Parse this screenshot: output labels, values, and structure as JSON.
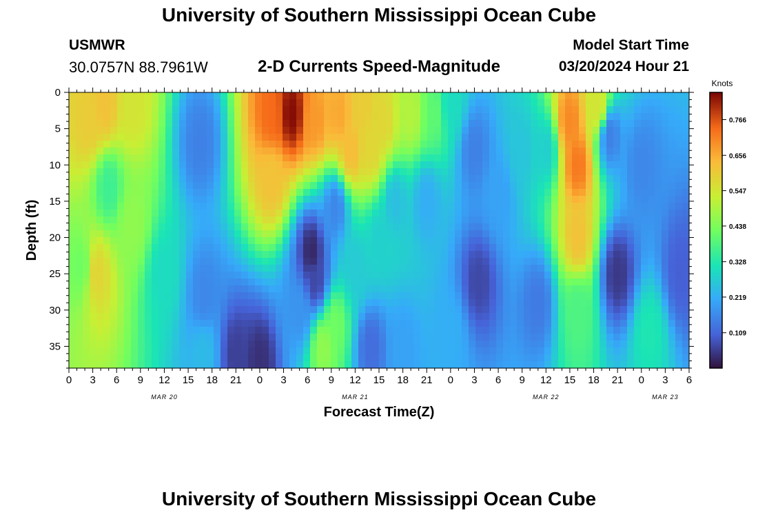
{
  "header": {
    "title": "University of Southern Mississippi Ocean Cube",
    "station": "USMWR",
    "coordinates": "30.0757N  88.7961W",
    "subtitle": "2-D Currents Speed-Magnitude",
    "start_label": "Model Start Time",
    "start_value": "03/20/2024 Hour 21"
  },
  "footer": {
    "title": "University of Southern Mississippi Ocean Cube"
  },
  "chart_data": {
    "type": "heatmap",
    "title": "2-D Currents Speed-Magnitude",
    "xlabel": "Forecast Time(Z)",
    "ylabel": "Depth (ft)",
    "x_ticks": [
      "0",
      "3",
      "6",
      "9",
      "12",
      "15",
      "18",
      "21",
      "0",
      "3",
      "6",
      "9",
      "12",
      "15",
      "18",
      "21",
      "0",
      "3",
      "6",
      "9",
      "12",
      "15",
      "18",
      "21",
      "0",
      "3",
      "6"
    ],
    "x_range_hours": [
      0,
      78
    ],
    "date_labels": [
      {
        "label": "MAR 20",
        "hour": 12
      },
      {
        "label": "MAR 21",
        "hour": 36
      },
      {
        "label": "MAR 22",
        "hour": 60
      },
      {
        "label": "MAR 23",
        "hour": 75
      }
    ],
    "y_ticks": [
      0,
      5,
      10,
      15,
      20,
      25,
      30,
      35
    ],
    "y_range": [
      0,
      38
    ],
    "y_inverted": true,
    "colorbar": {
      "label": "Knots",
      "ticks": [
        "0.109",
        "0.219",
        "0.328",
        "0.438",
        "0.547",
        "0.656",
        "0.766"
      ],
      "range": [
        0.0,
        0.85
      ],
      "colormap": "turbo"
    },
    "features": [
      {
        "t": 2.5,
        "d": 4,
        "value": 0.6
      },
      {
        "t": 4.5,
        "d": 2,
        "value": 0.62
      },
      {
        "t": 8,
        "d": 2,
        "value": 0.55
      },
      {
        "t": 5,
        "d": 13,
        "value": 0.36
      },
      {
        "t": 8,
        "d": 18,
        "value": 0.46
      },
      {
        "t": 3.5,
        "d": 25,
        "value": 0.58
      },
      {
        "t": 1.5,
        "d": 24,
        "value": 0.42
      },
      {
        "t": 12,
        "d": 25,
        "value": 0.3
      },
      {
        "t": 16.5,
        "d": 7,
        "value": 0.15
      },
      {
        "t": 17,
        "d": 28,
        "value": 0.16
      },
      {
        "t": 17,
        "d": 36,
        "value": 0.24
      },
      {
        "t": 21,
        "d": 36,
        "value": 0.06
      },
      {
        "t": 24,
        "d": 37,
        "value": 0.04
      },
      {
        "t": 25.5,
        "d": 3,
        "value": 0.74
      },
      {
        "t": 25.5,
        "d": 12,
        "value": 0.62
      },
      {
        "t": 28,
        "d": 3,
        "value": 0.84
      },
      {
        "t": 31,
        "d": 4,
        "value": 0.68
      },
      {
        "t": 34,
        "d": 3,
        "value": 0.66
      },
      {
        "t": 35.5,
        "d": 8,
        "value": 0.63
      },
      {
        "t": 37,
        "d": 2,
        "value": 0.6
      },
      {
        "t": 38,
        "d": 8,
        "value": 0.58
      },
      {
        "t": 39.5,
        "d": 4,
        "value": 0.58
      },
      {
        "t": 43,
        "d": 3,
        "value": 0.5
      },
      {
        "t": 46,
        "d": 3,
        "value": 0.4
      },
      {
        "t": 48,
        "d": 2,
        "value": 0.3
      },
      {
        "t": 33.5,
        "d": 16,
        "value": 0.16
      },
      {
        "t": 30.5,
        "d": 22,
        "value": 0.03
      },
      {
        "t": 31,
        "d": 26,
        "value": 0.07
      },
      {
        "t": 29,
        "d": 30,
        "value": 0.18
      },
      {
        "t": 33.5,
        "d": 32,
        "value": 0.42
      },
      {
        "t": 32,
        "d": 35,
        "value": 0.46
      },
      {
        "t": 36,
        "d": 24,
        "value": 0.27
      },
      {
        "t": 39,
        "d": 20,
        "value": 0.28
      },
      {
        "t": 41,
        "d": 15,
        "value": 0.25
      },
      {
        "t": 45,
        "d": 15,
        "value": 0.22
      },
      {
        "t": 38,
        "d": 35,
        "value": 0.12
      },
      {
        "t": 42,
        "d": 35,
        "value": 0.2
      },
      {
        "t": 48,
        "d": 33,
        "value": 0.22
      },
      {
        "t": 51.5,
        "d": 26,
        "value": 0.07
      },
      {
        "t": 51,
        "d": 8,
        "value": 0.15
      },
      {
        "t": 54,
        "d": 14,
        "value": 0.2
      },
      {
        "t": 57,
        "d": 8,
        "value": 0.26
      },
      {
        "t": 60,
        "d": 8,
        "value": 0.28
      },
      {
        "t": 59,
        "d": 29,
        "value": 0.14
      },
      {
        "t": 63,
        "d": 4,
        "value": 0.7
      },
      {
        "t": 64,
        "d": 10,
        "value": 0.72
      },
      {
        "t": 64,
        "d": 20,
        "value": 0.62
      },
      {
        "t": 64,
        "d": 30,
        "value": 0.38
      },
      {
        "t": 66.5,
        "d": 2,
        "value": 0.55
      },
      {
        "t": 68,
        "d": 6,
        "value": 0.15
      },
      {
        "t": 69,
        "d": 25,
        "value": 0.05
      },
      {
        "t": 73,
        "d": 33,
        "value": 0.32
      },
      {
        "t": 72,
        "d": 10,
        "value": 0.16
      },
      {
        "t": 77,
        "d": 25,
        "value": 0.1
      }
    ]
  }
}
